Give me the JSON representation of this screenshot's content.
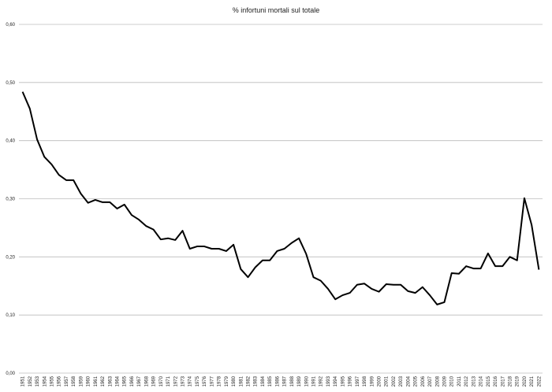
{
  "chart_data": {
    "type": "line",
    "title": "% infortuni mortali sul totale",
    "categories": [
      "1951",
      "1952",
      "1953",
      "1954",
      "1955",
      "1956",
      "1957",
      "1958",
      "1959",
      "1960",
      "1961",
      "1962",
      "1963",
      "1964",
      "1965",
      "1966",
      "1967",
      "1968",
      "1969",
      "1970",
      "1971",
      "1972",
      "1973",
      "1974",
      "1975",
      "1976",
      "1977",
      "1978",
      "1979",
      "1980",
      "1981",
      "1982",
      "1983",
      "1984",
      "1985",
      "1986",
      "1987",
      "1988",
      "1989",
      "1990",
      "1991",
      "1992",
      "1993",
      "1994",
      "1995",
      "1996",
      "1997",
      "1998",
      "1999",
      "2000",
      "2001",
      "2002",
      "2003",
      "2004",
      "2005",
      "2006",
      "2007",
      "2008",
      "2009",
      "2010",
      "2011",
      "2012",
      "2013",
      "2014",
      "2015",
      "2016",
      "2017",
      "2018",
      "2019",
      "2020",
      "2021",
      "2022"
    ],
    "values": [
      0.484,
      0.455,
      0.402,
      0.372,
      0.359,
      0.341,
      0.332,
      0.332,
      0.309,
      0.293,
      0.298,
      0.294,
      0.294,
      0.283,
      0.29,
      0.272,
      0.264,
      0.253,
      0.247,
      0.23,
      0.232,
      0.229,
      0.245,
      0.214,
      0.218,
      0.218,
      0.214,
      0.214,
      0.21,
      0.221,
      0.179,
      0.165,
      0.182,
      0.194,
      0.194,
      0.21,
      0.214,
      0.224,
      0.232,
      0.205,
      0.165,
      0.159,
      0.145,
      0.127,
      0.134,
      0.138,
      0.152,
      0.154,
      0.145,
      0.14,
      0.153,
      0.152,
      0.152,
      0.141,
      0.138,
      0.148,
      0.134,
      0.118,
      0.122,
      0.172,
      0.171,
      0.184,
      0.18,
      0.18,
      0.206,
      0.184,
      0.184,
      0.2,
      0.194,
      0.301,
      0.255,
      0.178
    ],
    "color": "#000000",
    "ylim": [
      0,
      0.6
    ],
    "yticks": [
      {
        "value": 0,
        "label": "0,00"
      },
      {
        "value": 0.1,
        "label": "0,10"
      },
      {
        "value": 0.2,
        "label": "0,20"
      },
      {
        "value": 0.3,
        "label": "0,30"
      },
      {
        "value": 0.4,
        "label": "0,40"
      },
      {
        "value": 0.5,
        "label": "0,50"
      },
      {
        "value": 0.6,
        "label": "0,60"
      }
    ],
    "grid": true
  }
}
